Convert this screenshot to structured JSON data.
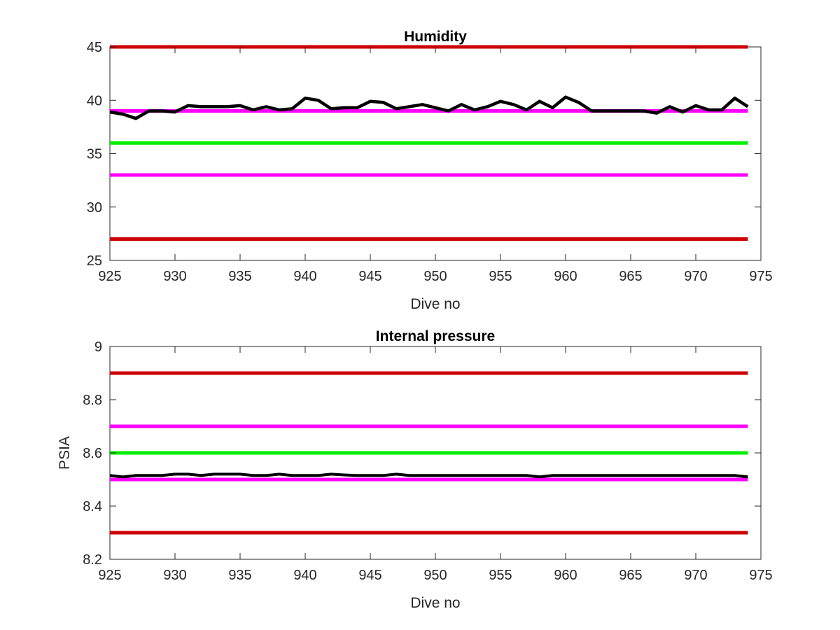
{
  "chart_data": [
    {
      "type": "line",
      "title": "Humidity",
      "xlabel": "Dive no",
      "ylabel": "",
      "xlim": [
        925,
        975
      ],
      "ylim": [
        25,
        45
      ],
      "xticks": [
        925,
        930,
        935,
        940,
        945,
        950,
        955,
        960,
        965,
        970,
        975
      ],
      "yticks": [
        25,
        30,
        35,
        40,
        45
      ],
      "grid": false,
      "limit_lines": [
        {
          "y": 45,
          "color": "#cc0000"
        },
        {
          "y": 39,
          "color": "#ff00ff"
        },
        {
          "y": 36,
          "color": "#00ee00"
        },
        {
          "y": 33,
          "color": "#ff00ff"
        },
        {
          "y": 27,
          "color": "#cc0000"
        }
      ],
      "series": [
        {
          "color": "#000000",
          "x": [
            925,
            926,
            927,
            928,
            929,
            930,
            931,
            932,
            933,
            934,
            935,
            936,
            937,
            938,
            939,
            940,
            941,
            942,
            943,
            944,
            945,
            946,
            947,
            948,
            949,
            950,
            951,
            952,
            953,
            954,
            955,
            956,
            957,
            958,
            959,
            960,
            961,
            962,
            963,
            964,
            965,
            966,
            967,
            968,
            969,
            970,
            971,
            972,
            973,
            974
          ],
          "y": [
            38.9,
            38.7,
            38.3,
            39.0,
            39.0,
            38.9,
            39.5,
            39.4,
            39.4,
            39.4,
            39.5,
            39.1,
            39.4,
            39.1,
            39.2,
            40.2,
            40.0,
            39.2,
            39.3,
            39.3,
            39.9,
            39.8,
            39.2,
            39.4,
            39.6,
            39.3,
            39.0,
            39.6,
            39.1,
            39.4,
            39.9,
            39.6,
            39.1,
            39.9,
            39.3,
            40.3,
            39.8,
            39.0,
            39.0,
            39.0,
            39.0,
            39.0,
            38.8,
            39.4,
            38.9,
            39.5,
            39.1,
            39.1,
            40.2,
            39.4
          ]
        }
      ]
    },
    {
      "type": "line",
      "title": "Internal pressure",
      "xlabel": "Dive no",
      "ylabel": "PSIA",
      "xlim": [
        925,
        975
      ],
      "ylim": [
        8.2,
        9.0
      ],
      "xticks": [
        925,
        930,
        935,
        940,
        945,
        950,
        955,
        960,
        965,
        970,
        975
      ],
      "yticks": [
        "8.2",
        "8.4",
        "8.6",
        "8.8",
        "9"
      ],
      "grid": false,
      "limit_lines": [
        {
          "y": 8.9,
          "color": "#cc0000"
        },
        {
          "y": 8.7,
          "color": "#ff00ff"
        },
        {
          "y": 8.6,
          "color": "#00ee00"
        },
        {
          "y": 8.5,
          "color": "#ff00ff"
        },
        {
          "y": 8.3,
          "color": "#cc0000"
        }
      ],
      "series": [
        {
          "color": "#000000",
          "x": [
            925,
            926,
            927,
            928,
            929,
            930,
            931,
            932,
            933,
            934,
            935,
            936,
            937,
            938,
            939,
            940,
            941,
            942,
            943,
            944,
            945,
            946,
            947,
            948,
            949,
            950,
            951,
            952,
            953,
            954,
            955,
            956,
            957,
            958,
            959,
            960,
            961,
            962,
            963,
            964,
            965,
            966,
            967,
            968,
            969,
            970,
            971,
            972,
            973,
            974
          ],
          "y": [
            8.515,
            8.51,
            8.515,
            8.515,
            8.515,
            8.52,
            8.52,
            8.515,
            8.52,
            8.52,
            8.52,
            8.515,
            8.515,
            8.52,
            8.515,
            8.515,
            8.515,
            8.52,
            8.517,
            8.515,
            8.515,
            8.515,
            8.52,
            8.515,
            8.515,
            8.515,
            8.515,
            8.515,
            8.515,
            8.515,
            8.515,
            8.515,
            8.515,
            8.51,
            8.515,
            8.515,
            8.515,
            8.515,
            8.515,
            8.515,
            8.515,
            8.515,
            8.515,
            8.515,
            8.515,
            8.515,
            8.515,
            8.515,
            8.515,
            8.51
          ]
        }
      ]
    }
  ]
}
